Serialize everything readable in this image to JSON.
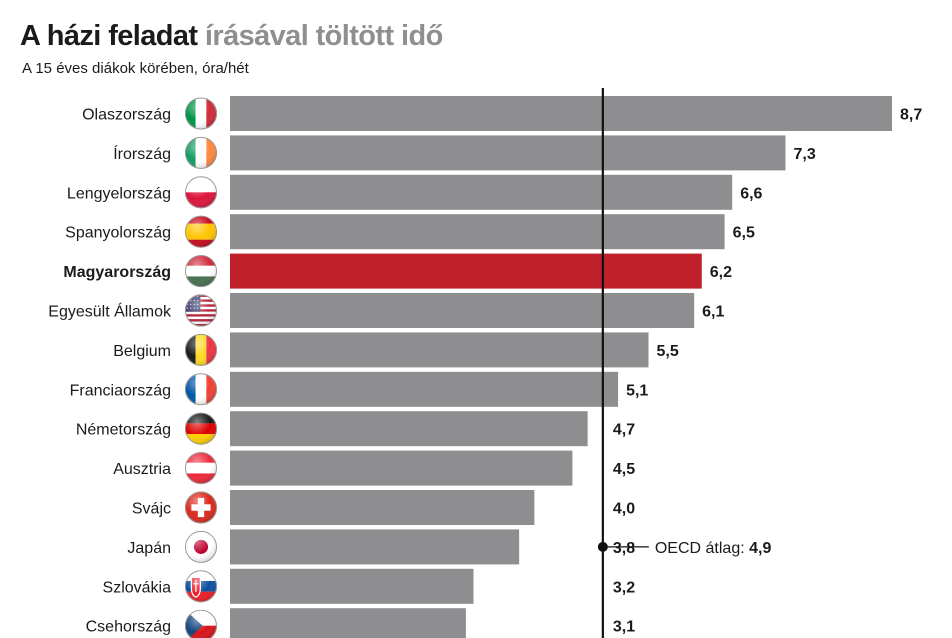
{
  "header": {
    "title_part1": "A ",
    "title_part2": "házi feladat",
    "title_part3": " írásával töltött idő",
    "subtitle": "A 15 éves diákok körében, óra/hét"
  },
  "chart_data": {
    "type": "bar",
    "orientation": "horizontal",
    "title": "A házi feladat írásával töltött idő",
    "subtitle": "A 15 éves diákok körében, óra/hét",
    "categories": [
      "Olaszország",
      "Írország",
      "Lengyelország",
      "Spanyolország",
      "Magyarország",
      "Egyesült Államok",
      "Belgium",
      "Franciaország",
      "Németország",
      "Ausztria",
      "Svájc",
      "Japán",
      "Szlovákia",
      "Csehország"
    ],
    "values": [
      8.7,
      7.3,
      6.6,
      6.5,
      6.2,
      6.1,
      5.5,
      5.1,
      4.7,
      4.5,
      4.0,
      3.8,
      3.2,
      3.1
    ],
    "value_labels": [
      "8,7",
      "7,3",
      "6,6",
      "6,5",
      "6,2",
      "6,1",
      "5,5",
      "5,1",
      "4,7",
      "4,5",
      "4,0",
      "3,8",
      "3,2",
      "3,1"
    ],
    "highlight": "Magyarország",
    "xlim": [
      0,
      8.7
    ],
    "grid": false,
    "reference_line": {
      "label": "OECD átlag:",
      "value": 4.9,
      "value_label": "4,9"
    },
    "colors": {
      "bar": "#8e8e90",
      "highlight": "#c0202a",
      "text": "#1b1b1b",
      "title_gray": "#8f8f8f"
    },
    "flags": [
      "italy-flag-icon",
      "ireland-flag-icon",
      "poland-flag-icon",
      "spain-flag-icon",
      "hungary-flag-icon",
      "usa-flag-icon",
      "belgium-flag-icon",
      "france-flag-icon",
      "germany-flag-icon",
      "austria-flag-icon",
      "switzerland-flag-icon",
      "japan-flag-icon",
      "slovakia-flag-icon",
      "czech-flag-icon"
    ]
  }
}
